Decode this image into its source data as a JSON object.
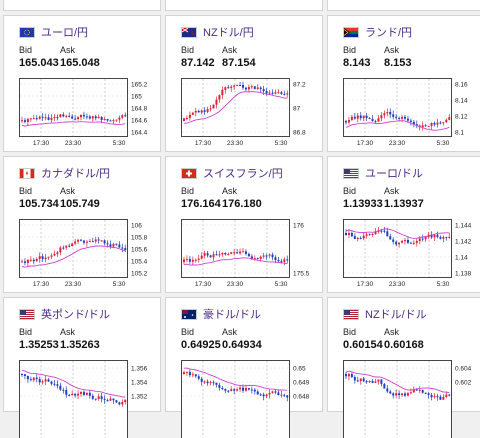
{
  "labels": {
    "bid": "Bid",
    "ask": "Ask"
  },
  "cards": [
    {
      "pair": "ユーロ/円",
      "bid": "165.043",
      "ask": "165.048",
      "flag": "eu-flag-icon",
      "yticks": [
        "165.2",
        "165",
        "164.8",
        "164.6",
        "164.4"
      ],
      "xticks": [
        "17:30",
        "23:30",
        "5:30"
      ]
    },
    {
      "pair": "NZドル/円",
      "bid": "87.142",
      "ask": "87.154",
      "flag": "nz-flag-icon",
      "yticks": [
        "87.2",
        "87",
        "86.8"
      ],
      "xticks": [
        "17:30",
        "23:30",
        "5:30"
      ]
    },
    {
      "pair": "ランド/円",
      "bid": "8.143",
      "ask": "8.153",
      "flag": "za-flag-icon",
      "yticks": [
        "8.16",
        "8.14",
        "8.12",
        "8.1"
      ],
      "xticks": [
        "17:30",
        "23:30",
        "5:30"
      ]
    },
    {
      "pair": "カナダドル/円",
      "bid": "105.734",
      "ask": "105.749",
      "flag": "ca-flag-icon",
      "yticks": [
        "106",
        "105.8",
        "105.6",
        "105.4",
        "105.2"
      ],
      "xticks": [
        "17:30",
        "23:30",
        "5:30"
      ]
    },
    {
      "pair": "スイスフラン/円",
      "bid": "176.164",
      "ask": "176.180",
      "flag": "ch-flag-icon",
      "yticks": [
        "176",
        "175.5"
      ],
      "xticks": [
        "17:30",
        "23:30",
        "5:30"
      ]
    },
    {
      "pair": "ユーロ/ドル",
      "bid": "1.13933",
      "ask": "1.13937",
      "flag": "us-flag-icon",
      "yticks": [
        "1.144",
        "1.142",
        "1.14",
        "1.138"
      ],
      "xticks": [
        "17:30",
        "23:30",
        "5:30"
      ]
    },
    {
      "pair": "英ポンド/ドル",
      "bid": "1.35253",
      "ask": "1.35263",
      "flag": "us-flag-icon",
      "yticks": [
        "1.356",
        "1.354",
        "1.352"
      ],
      "xticks": [],
      "partial": true
    },
    {
      "pair": "豪ドル/ドル",
      "bid": "0.64925",
      "ask": "0.64934",
      "flag": "au-flag-icon",
      "yticks": [
        "0.65",
        "0.649",
        "0.648"
      ],
      "xticks": [],
      "partial": true
    },
    {
      "pair": "NZドル/ドル",
      "bid": "0.60154",
      "ask": "0.60168",
      "flag": "us-flag-icon",
      "yticks": [
        "0.604",
        "0.602"
      ],
      "xticks": [],
      "partial": true
    }
  ]
}
